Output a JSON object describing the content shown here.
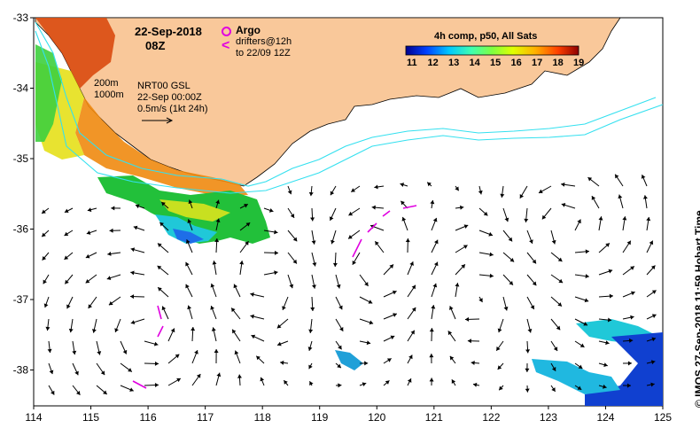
{
  "header": {
    "date": "22-Sep-2018",
    "time": "08Z"
  },
  "legend": {
    "argo_label": "Argo",
    "drifters_label_1": "drifters@12h",
    "drifters_label_2": "to 22/09 12Z",
    "argo_color": "#e000e0",
    "drifter_color": "#e000e0"
  },
  "info": {
    "contour_200": "200m",
    "contour_1000": "1000m",
    "product": "NRT00 GSL",
    "product_time": "22-Sep 00:00Z",
    "scale_arrow": "0.5m/s (1kt 24h)"
  },
  "colorbar": {
    "title": "4h comp, p50, All Sats",
    "ticks": [
      "11",
      "12",
      "13",
      "14",
      "15",
      "16",
      "17",
      "18",
      "19"
    ]
  },
  "credit": "©  IMOS 27-Sep-2018 11:59 Hobart Time",
  "axes": {
    "x_ticks": [
      "114",
      "115",
      "116",
      "117",
      "118",
      "119",
      "120",
      "121",
      "122",
      "123",
      "124",
      "125"
    ],
    "y_ticks": [
      "-33",
      "-34",
      "-35",
      "-36",
      "-37",
      "-38"
    ]
  },
  "colors": {
    "land": "#f9c89a",
    "bathy_contour": "#34e0ef",
    "arrow": "#000000"
  }
}
